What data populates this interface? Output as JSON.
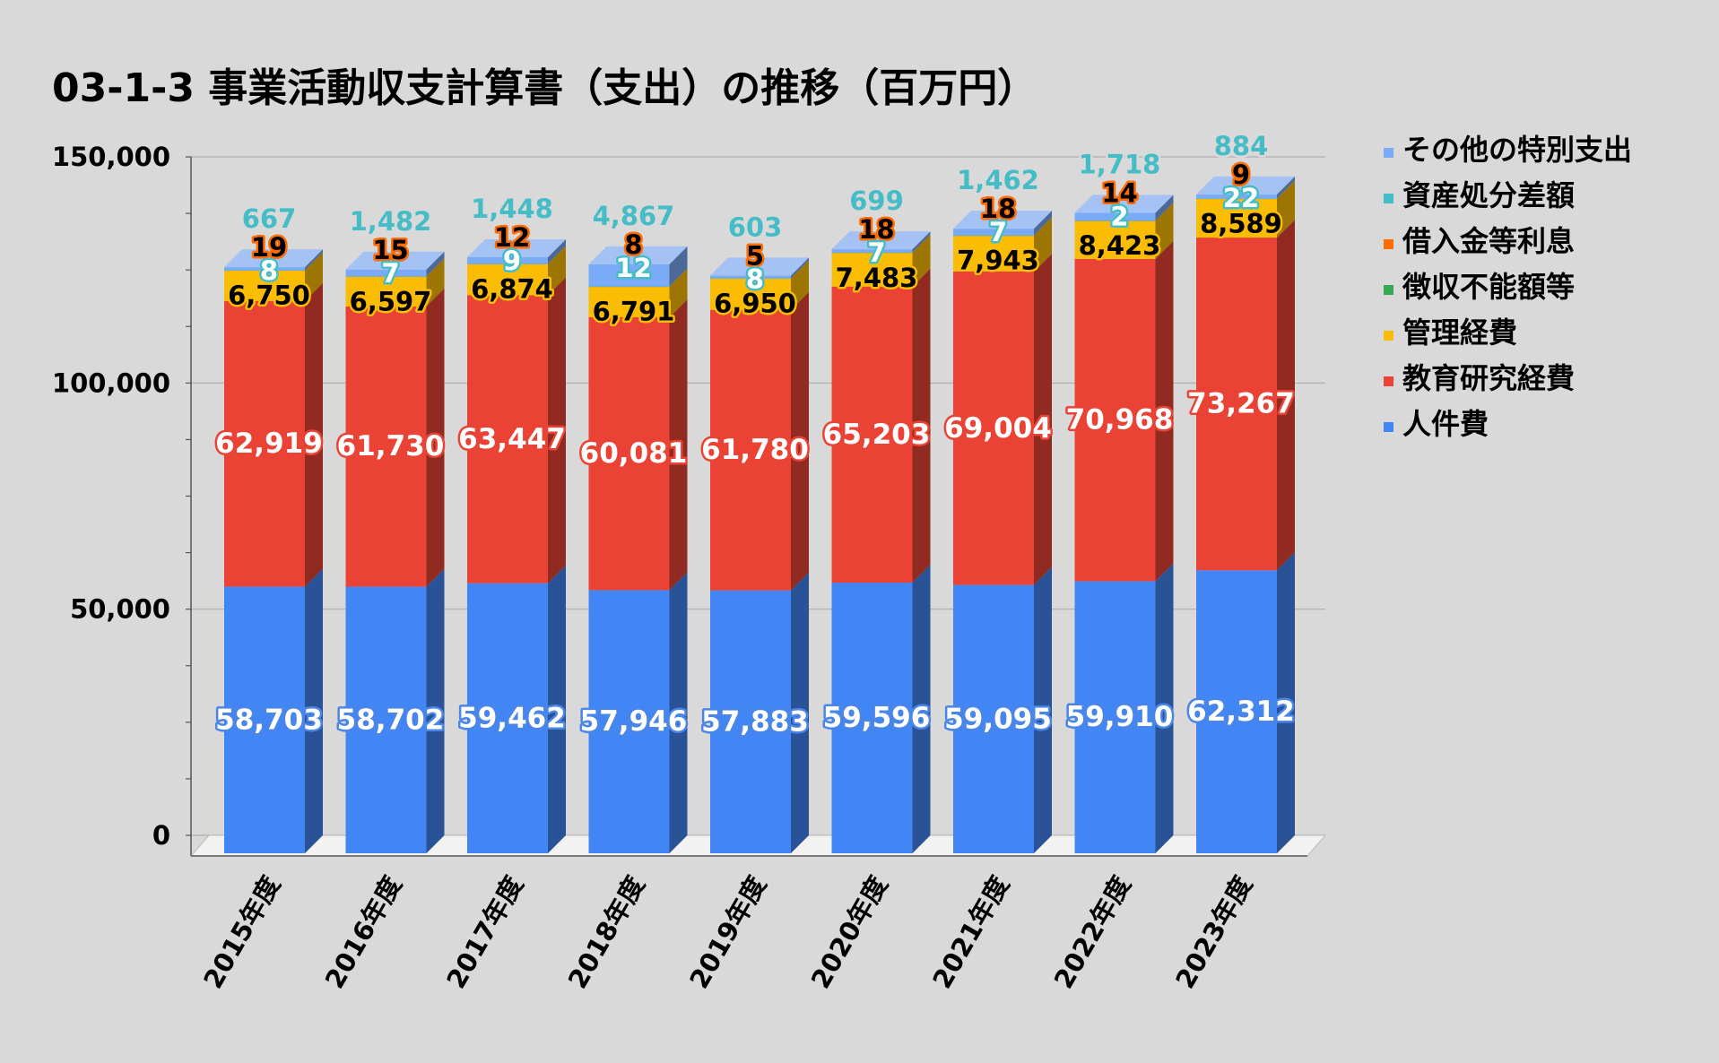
{
  "title": "03-1-3 事業活動収支計算書（支出）の推移（百万円）",
  "chart_data": {
    "type": "bar",
    "stacked": true,
    "three_d": true,
    "categories": [
      "2015年度",
      "2016年度",
      "2017年度",
      "2018年度",
      "2019年度",
      "2020年度",
      "2021年度",
      "2022年度",
      "2023年度"
    ],
    "series": [
      {
        "name": "人件費",
        "color": "#4285f4",
        "values": [
          58703,
          58702,
          59462,
          57946,
          57883,
          59596,
          59095,
          59910,
          62312
        ]
      },
      {
        "name": "教育研究経費",
        "color": "#ea4335",
        "values": [
          62919,
          61730,
          63447,
          60081,
          61780,
          65203,
          69004,
          70968,
          73267
        ]
      },
      {
        "name": "管理経費",
        "color": "#fbbc04",
        "values": [
          6750,
          6597,
          6874,
          6791,
          6950,
          7483,
          7943,
          8423,
          8589
        ]
      },
      {
        "name": "徴収不能額等",
        "color": "#34a853",
        "values": [
          null,
          null,
          null,
          null,
          null,
          null,
          null,
          null,
          null
        ]
      },
      {
        "name": "借入金等利息",
        "color": "#ff6d01",
        "values": [
          19,
          15,
          12,
          8,
          5,
          18,
          18,
          14,
          9
        ]
      },
      {
        "name": "資産処分差額",
        "color": "#46bdc6",
        "values": [
          8,
          7,
          9,
          12,
          8,
          7,
          7,
          2,
          22
        ]
      },
      {
        "name": "その他の特別支出",
        "color": "#7baaf7",
        "values": [
          667,
          1482,
          1448,
          4867,
          603,
          699,
          1462,
          1718,
          884
        ]
      }
    ],
    "yticks": [
      "150,000",
      "100,000",
      "50,000",
      "0"
    ],
    "ylim": [
      0,
      150000
    ],
    "grid": true,
    "legend_position": "right"
  }
}
